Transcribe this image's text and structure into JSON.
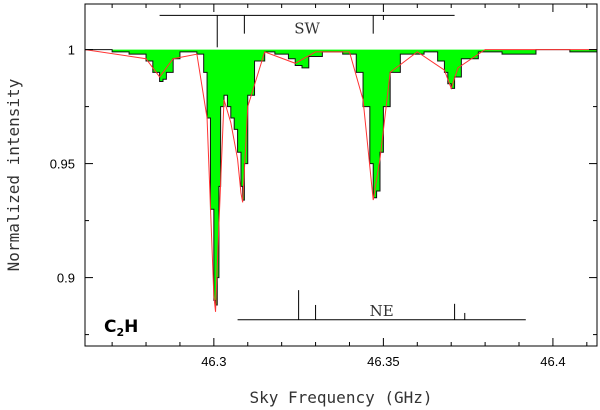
{
  "chart_data": {
    "type": "line",
    "xlabel": "Sky Frequency (GHz)",
    "ylabel": "Normalized intensity",
    "xlim": [
      46.262,
      46.413
    ],
    "ylim": [
      0.87,
      1.02
    ],
    "x_ticks": [
      46.3,
      46.35,
      46.4
    ],
    "x_tick_labels": [
      "46.3",
      "46.35",
      "46.4"
    ],
    "y_ticks": [
      0.9,
      0.95,
      1.0
    ],
    "y_tick_labels": [
      "0.9",
      "0.95",
      "1"
    ],
    "grid": false,
    "molecule_label": {
      "main": "C",
      "sub": "2",
      "tail": "H"
    },
    "series": [
      {
        "role": "observed spectrum (histogram, green filled)",
        "fill_color": "#00ff00",
        "line_color": "#111111",
        "baseline": 1.0,
        "x": [
          46.262,
          46.27,
          46.275,
          46.28,
          46.282,
          46.284,
          46.285,
          46.286,
          46.288,
          46.29,
          46.295,
          46.297,
          46.298,
          46.299,
          46.3,
          46.3005,
          46.301,
          46.3015,
          46.302,
          46.303,
          46.304,
          46.305,
          46.306,
          46.307,
          46.308,
          46.3085,
          46.309,
          46.31,
          46.312,
          46.315,
          46.318,
          46.322,
          46.324,
          46.326,
          46.328,
          46.332,
          46.338,
          46.342,
          46.344,
          46.346,
          46.347,
          46.348,
          46.349,
          46.35,
          46.352,
          46.355,
          46.362,
          46.366,
          46.368,
          46.369,
          46.37,
          46.371,
          46.373,
          46.378,
          46.385,
          46.395,
          46.405,
          46.413
        ],
        "y": [
          1.0,
          0.999,
          0.998,
          0.995,
          0.99,
          0.986,
          0.987,
          0.99,
          0.996,
          0.999,
          0.998,
          0.99,
          0.97,
          0.93,
          0.89,
          0.888,
          0.9,
          0.94,
          0.975,
          0.98,
          0.975,
          0.97,
          0.965,
          0.955,
          0.94,
          0.934,
          0.95,
          0.98,
          0.995,
          0.999,
          0.998,
          0.996,
          0.993,
          0.992,
          0.997,
          0.999,
          0.998,
          0.99,
          0.975,
          0.95,
          0.935,
          0.938,
          0.955,
          0.975,
          0.99,
          0.998,
          0.999,
          0.995,
          0.99,
          0.985,
          0.983,
          0.988,
          0.996,
          0.999,
          0.998,
          1.0,
          0.999,
          1.0
        ]
      },
      {
        "role": "model fit",
        "line_color": "#ff3333",
        "x": [
          46.262,
          46.28,
          46.284,
          46.288,
          46.295,
          46.298,
          46.3,
          46.3005,
          46.301,
          46.303,
          46.305,
          46.307,
          46.308,
          46.3085,
          46.31,
          46.315,
          46.324,
          46.33,
          46.34,
          46.344,
          46.347,
          46.349,
          46.352,
          46.36,
          46.368,
          46.37,
          46.372,
          46.38,
          46.413
        ],
        "y": [
          1.0,
          0.996,
          0.988,
          0.996,
          0.998,
          0.97,
          0.892,
          0.885,
          0.905,
          0.978,
          0.968,
          0.952,
          0.937,
          0.933,
          0.975,
          0.999,
          0.994,
          0.999,
          0.999,
          0.978,
          0.934,
          0.952,
          0.99,
          0.999,
          0.991,
          0.983,
          0.992,
          1.0,
          1.0
        ]
      }
    ],
    "markers": [
      {
        "label": "SW",
        "y_bar": 1.015,
        "x_start": 46.284,
        "x_end": 46.371,
        "ticks": [
          {
            "x": 46.301,
            "y_end": 1.001
          },
          {
            "x": 46.309,
            "y_end": 1.007
          },
          {
            "x": 46.347,
            "y_end": 1.007
          },
          {
            "x": 46.35,
            "y_end": 1.013
          }
        ]
      },
      {
        "label": "NE",
        "y_bar": 0.8815,
        "x_start": 46.307,
        "x_end": 46.392,
        "ticks": [
          {
            "x": 46.325,
            "y_end": 0.8945
          },
          {
            "x": 46.33,
            "y_end": 0.888
          },
          {
            "x": 46.371,
            "y_end": 0.8885
          },
          {
            "x": 46.374,
            "y_end": 0.8845
          }
        ]
      }
    ]
  }
}
